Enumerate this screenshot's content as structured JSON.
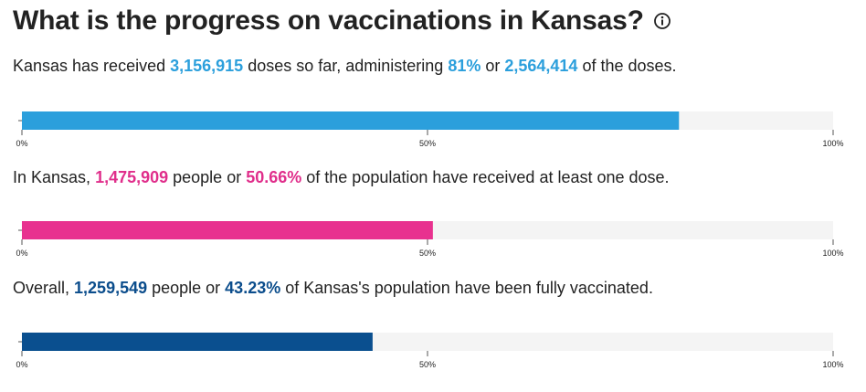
{
  "header": {
    "title": "What is the progress on vaccinations in Kansas?",
    "info_icon": "info-icon"
  },
  "sections": [
    {
      "segments": [
        {
          "text": "Kansas has received ",
          "bold": false
        },
        {
          "text": "3,156,915",
          "bold": true,
          "color": "#2b9fdc"
        },
        {
          "text": " doses so far, administering ",
          "bold": false
        },
        {
          "text": "81%",
          "bold": true,
          "color": "#2b9fdc"
        },
        {
          "text": " or ",
          "bold": false
        },
        {
          "text": "2,564,414",
          "bold": true,
          "color": "#2b9fdc"
        },
        {
          "text": " of the doses.",
          "bold": false
        }
      ]
    },
    {
      "segments": [
        {
          "text": "In Kansas, ",
          "bold": false
        },
        {
          "text": "1,475,909",
          "bold": true,
          "color": "#e02e8b"
        },
        {
          "text": " people or ",
          "bold": false
        },
        {
          "text": "50.66%",
          "bold": true,
          "color": "#e02e8b"
        },
        {
          "text": " of the population have received at least one dose.",
          "bold": false
        }
      ]
    },
    {
      "segments": [
        {
          "text": "Overall, ",
          "bold": false
        },
        {
          "text": "1,259,549",
          "bold": true,
          "color": "#0b4d8c"
        },
        {
          "text": " people or ",
          "bold": false
        },
        {
          "text": "43.23%",
          "bold": true,
          "color": "#0b4d8c"
        },
        {
          "text": " of Kansas's population have been fully vaccinated.",
          "bold": false
        }
      ]
    }
  ],
  "chart_data": [
    {
      "type": "bar",
      "orientation": "horizontal",
      "values": [
        81
      ],
      "xlim": [
        0,
        100
      ],
      "tick_labels": [
        "0%",
        "50%",
        "100%"
      ],
      "bar_color": "#2b9fdc",
      "track_color": "#f4f4f4"
    },
    {
      "type": "bar",
      "orientation": "horizontal",
      "values": [
        50.66
      ],
      "xlim": [
        0,
        100
      ],
      "tick_labels": [
        "0%",
        "50%",
        "100%"
      ],
      "bar_color": "#e8318f",
      "track_color": "#f4f4f4"
    },
    {
      "type": "bar",
      "orientation": "horizontal",
      "values": [
        43.23
      ],
      "xlim": [
        0,
        100
      ],
      "tick_labels": [
        "0%",
        "50%",
        "100%"
      ],
      "bar_color": "#0a4f8f",
      "track_color": "#f4f4f4"
    }
  ]
}
